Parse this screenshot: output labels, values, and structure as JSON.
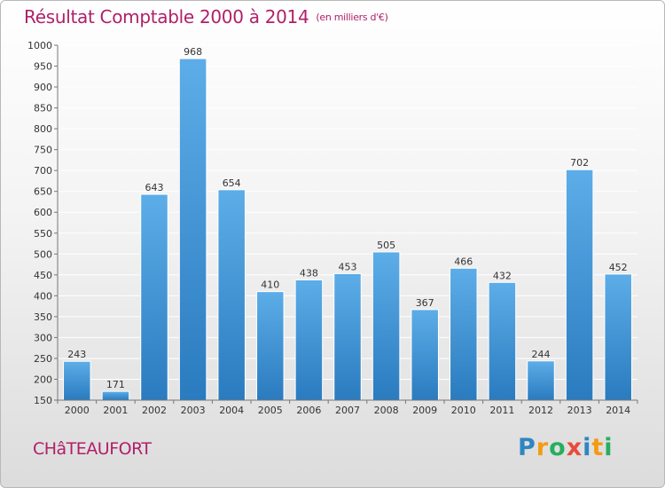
{
  "title": "Résultat Comptable 2000 à 2014",
  "subtitle": "(en milliers d'€)",
  "commune": "CHâTEAUFORT",
  "logo": {
    "text": "Proxiti",
    "letters": [
      {
        "char": "P",
        "color": "#2e86c1"
      },
      {
        "char": "r",
        "color": "#f39c12"
      },
      {
        "char": "o",
        "color": "#27ae60"
      },
      {
        "char": "x",
        "color": "#e74c3c"
      },
      {
        "char": "i",
        "color": "#2e86c1"
      },
      {
        "char": "t",
        "color": "#f39c12"
      },
      {
        "char": "i",
        "color": "#27ae60"
      }
    ]
  },
  "colors": {
    "title": "#b0206a",
    "bar_top": "#5dade8",
    "bar_bottom": "#2a7bbf",
    "grid": "#ffffff",
    "text": "#333333"
  },
  "chart_data": {
    "type": "bar",
    "title": "Résultat Comptable 2000 à 2014",
    "subtitle": "(en milliers d'€)",
    "categories": [
      "2000",
      "2001",
      "2002",
      "2003",
      "2004",
      "2005",
      "2006",
      "2007",
      "2008",
      "2009",
      "2010",
      "2011",
      "2012",
      "2013",
      "2014"
    ],
    "values": [
      243,
      171,
      643,
      968,
      654,
      410,
      438,
      453,
      505,
      367,
      466,
      432,
      244,
      702,
      452
    ],
    "ylim": [
      150,
      1000
    ],
    "yticks": [
      150,
      200,
      250,
      300,
      350,
      400,
      450,
      500,
      550,
      600,
      650,
      700,
      750,
      800,
      850,
      900,
      950,
      1000
    ],
    "grid": true,
    "data_labels": true
  }
}
